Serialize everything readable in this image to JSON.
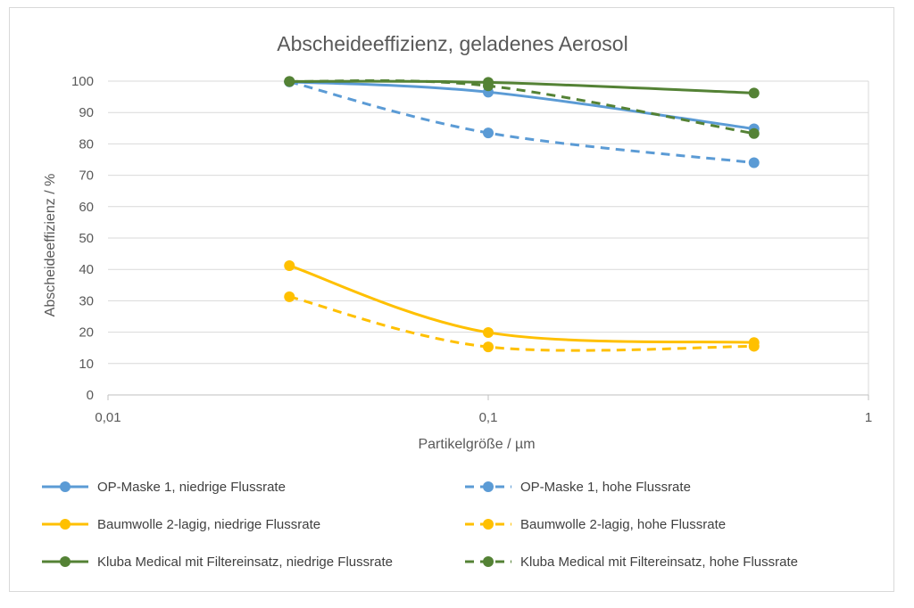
{
  "chart_data": {
    "type": "line",
    "title": "Abscheideeffizienz, geladenes Aerosol",
    "xlabel": "Partikelgröße / µm",
    "ylabel": "Abscheideeffizienz / %",
    "x_scale": "log",
    "xlim": [
      0.01,
      1
    ],
    "ylim": [
      0,
      100
    ],
    "x_ticks": [
      "0,01",
      "0,1",
      "1"
    ],
    "y_ticks": [
      "0",
      "10",
      "20",
      "30",
      "40",
      "50",
      "60",
      "70",
      "80",
      "90",
      "100"
    ],
    "grid": "horizontal",
    "legend_position": "bottom",
    "x": [
      0.03,
      0.1,
      0.5
    ],
    "series": [
      {
        "name": "OP-Maske 1, niedrige Flussrate",
        "values": [
          99.8,
          96.5,
          84.8
        ],
        "color": "#5b9bd5",
        "dashed": false
      },
      {
        "name": "OP-Maske 1, hohe Flussrate",
        "values": [
          99.8,
          83.5,
          74.0
        ],
        "color": "#5b9bd5",
        "dashed": true
      },
      {
        "name": "Baumwolle 2-lagig, niedrige Flussrate",
        "values": [
          41.2,
          19.9,
          16.7
        ],
        "color": "#ffc000",
        "dashed": false
      },
      {
        "name": "Baumwolle 2-lagig, hohe Flussrate",
        "values": [
          31.3,
          15.3,
          15.5
        ],
        "color": "#ffc000",
        "dashed": true
      },
      {
        "name": "Kluba Medical mit Filtereinsatz, niedrige Flussrate",
        "values": [
          99.9,
          99.6,
          96.2
        ],
        "color": "#548235",
        "dashed": false
      },
      {
        "name": "Kluba Medical mit Filtereinsatz, hohe Flussrate",
        "values": [
          99.9,
          98.5,
          83.3
        ],
        "color": "#548235",
        "dashed": true
      }
    ]
  }
}
